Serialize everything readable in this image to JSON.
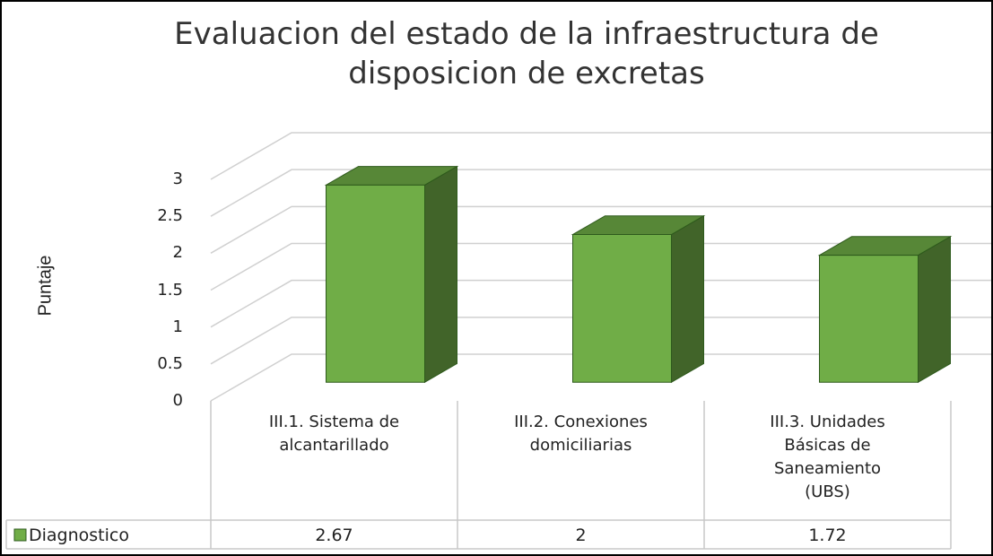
{
  "chart_data": {
    "type": "bar",
    "title": "Evaluacion del estado de la infraestructura de disposicion de excretas",
    "y_label": "Puntaje",
    "categories": [
      "III.1. Sistema de alcantarillado",
      "III.2. Conexiones domiciliarias",
      "III.3. Unidades Básicas de Saneamiento (UBS)"
    ],
    "series": [
      {
        "name": "Diagnostico",
        "color": "#70ad47",
        "values": [
          2.67,
          2,
          1.72
        ]
      }
    ],
    "ylim": [
      0,
      3
    ],
    "yticks": [
      0,
      0.5,
      1,
      1.5,
      2,
      2.5,
      3
    ],
    "grid": true
  }
}
